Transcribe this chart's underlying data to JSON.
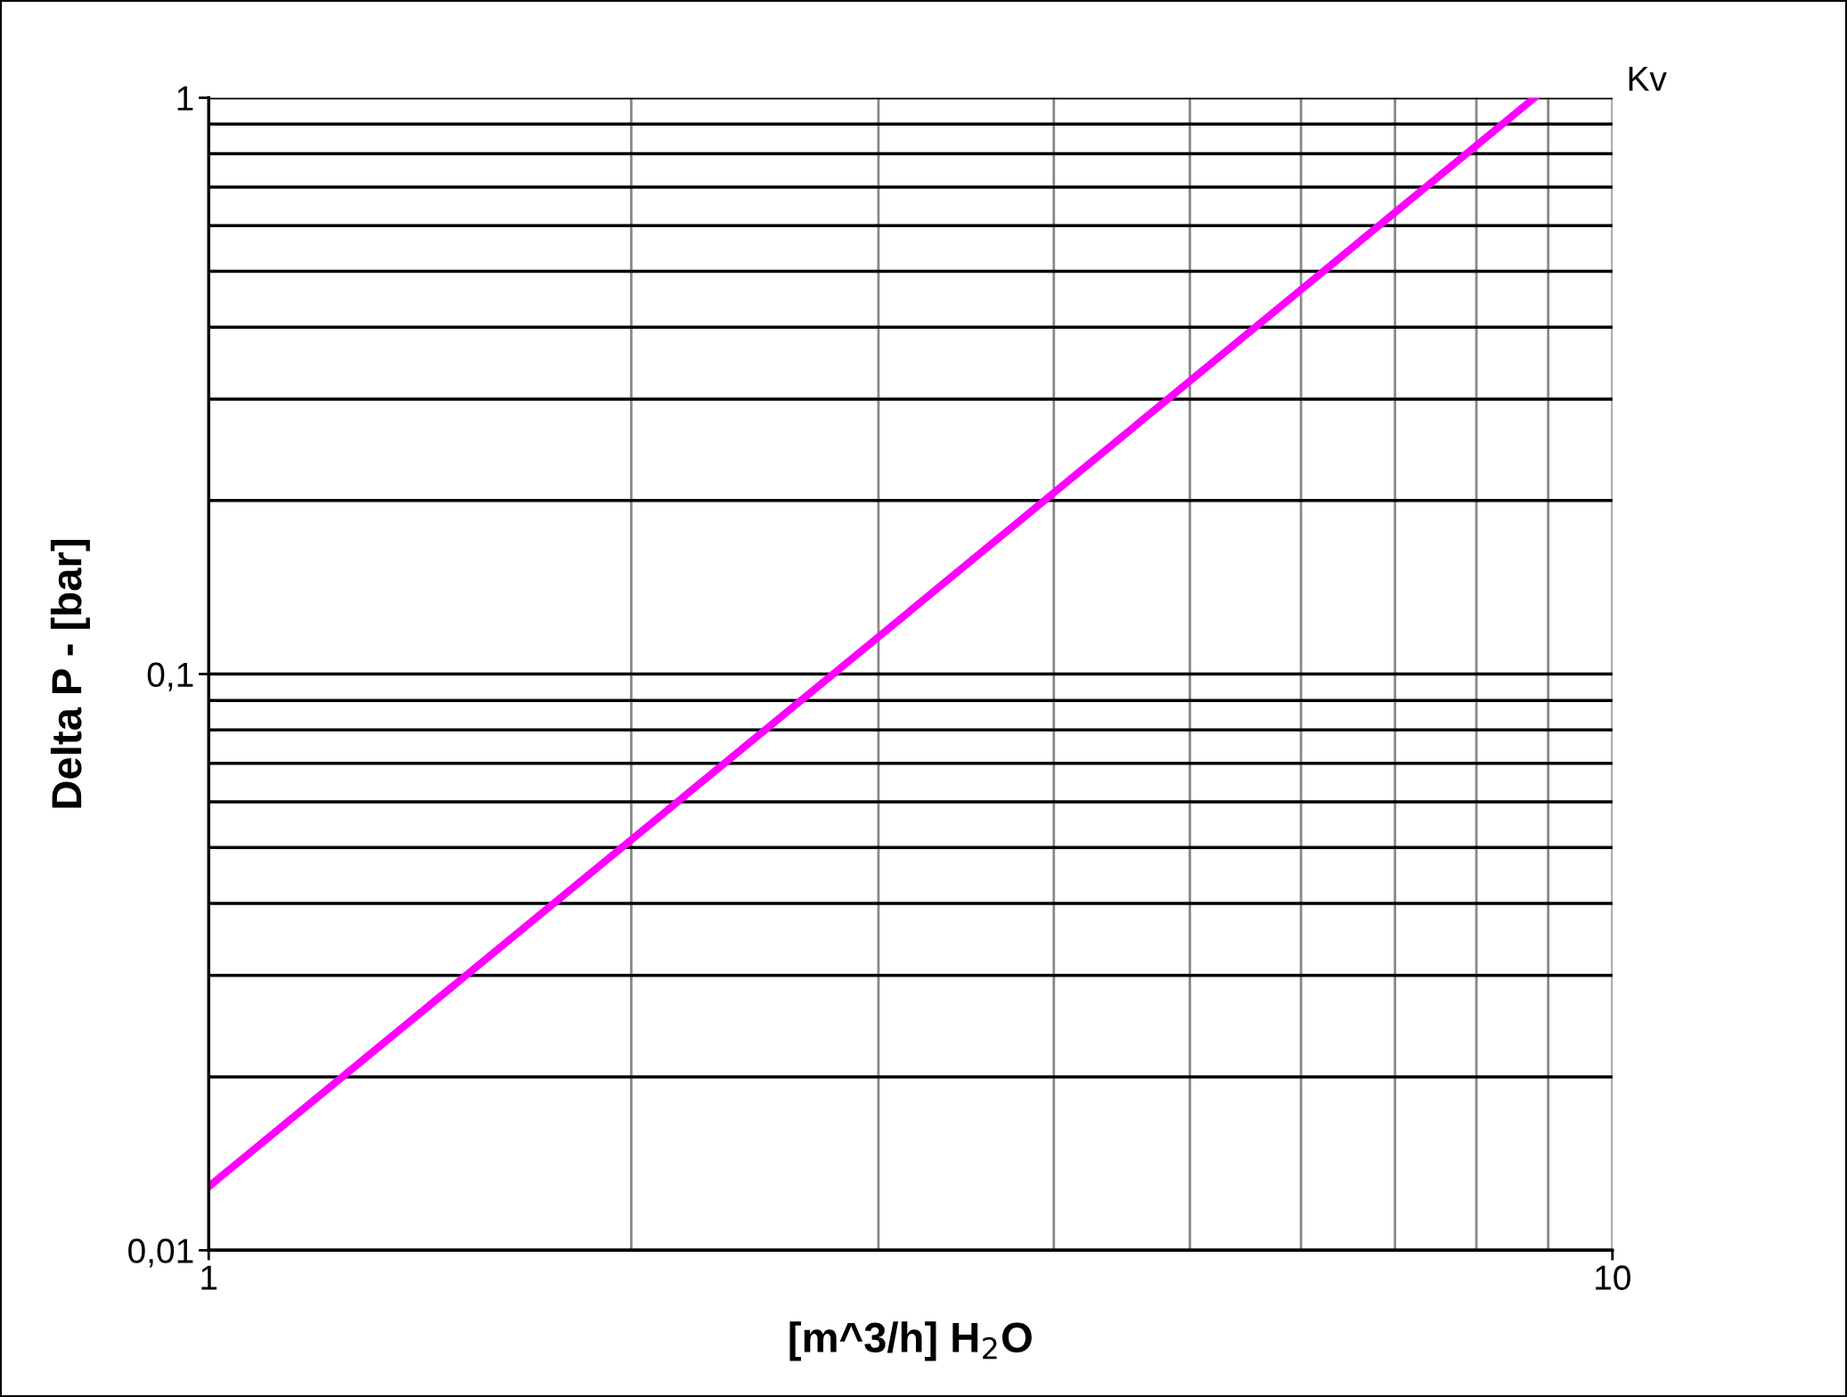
{
  "chart_data": {
    "type": "line",
    "xlabel": "[m^3/h] H$_{2}$O",
    "ylabel": "Delta P - [bar]",
    "log": "xy",
    "xlim": [
      1,
      10
    ],
    "ylim": [
      0.01,
      1
    ],
    "xticks": [
      1,
      10
    ],
    "yticks": [
      {
        "value": 0.01,
        "label": "0,01"
      },
      {
        "value": 0.1,
        "label": "0,1"
      },
      {
        "value": 1,
        "label": "1"
      }
    ],
    "grid": true,
    "series": [
      {
        "name": "Kv",
        "color": "#ff00ff",
        "x": [
          1,
          3,
          8.8
        ],
        "values": [
          0.0129,
          0.116,
          1
        ]
      }
    ]
  }
}
